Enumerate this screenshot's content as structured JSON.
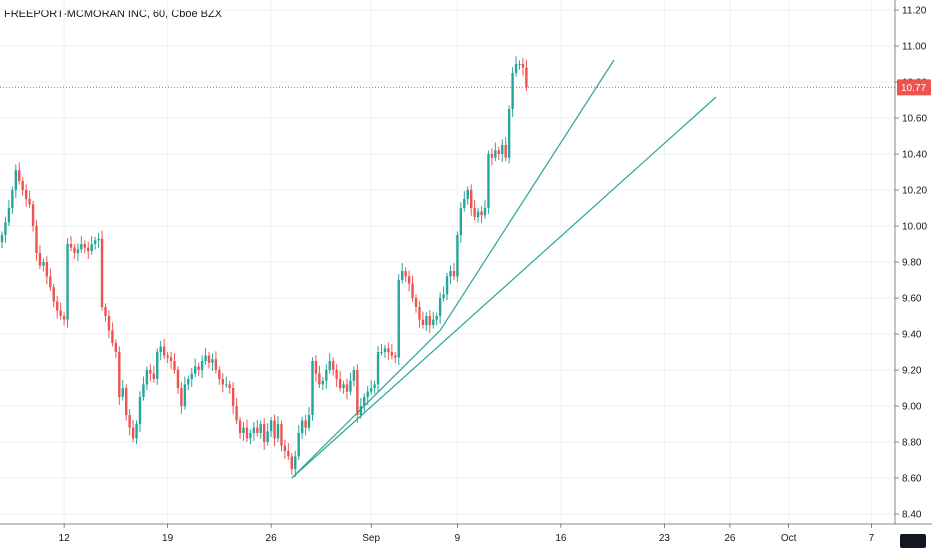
{
  "title": "FREEPORT-MCMORAN INC, 60, Cboe BZX",
  "colors": {
    "up": "#26a69a",
    "down": "#ef5350",
    "trendline": "#26a69a",
    "grid": "#eef0f3",
    "price_line": "#ef5350",
    "price_badge": "#ef5350",
    "axis_text": "#131722"
  },
  "chart_data": {
    "type": "candlestick",
    "title": "FREEPORT-MCMORAN INC, 60, Cboe BZX",
    "ylim": [
      8.35,
      11.3
    ],
    "y_ticks": [
      "8.40",
      "8.60",
      "8.80",
      "9.00",
      "9.20",
      "9.40",
      "9.60",
      "9.80",
      "10.00",
      "10.20",
      "10.40",
      "10.60",
      "10.80",
      "11.00",
      "11.20"
    ],
    "x_ticks": [
      {
        "label": "12",
        "index": 18
      },
      {
        "label": "19",
        "index": 48
      },
      {
        "label": "26",
        "index": 78
      },
      {
        "label": "Sep",
        "index": 107
      },
      {
        "label": "9",
        "index": 132
      },
      {
        "label": "16",
        "index": 162
      },
      {
        "label": "23",
        "index": 192
      },
      {
        "label": "26",
        "index": 211
      },
      {
        "label": "Oct",
        "index": 228
      },
      {
        "label": "7",
        "index": 252
      }
    ],
    "last_price": "10.77",
    "grid": true,
    "close": [
      9.95,
      10.02,
      10.1,
      10.2,
      10.31,
      10.25,
      10.2,
      10.15,
      10.12,
      10.0,
      9.85,
      9.78,
      9.8,
      9.72,
      9.66,
      9.58,
      9.53,
      9.5,
      9.48,
      9.9,
      9.88,
      9.85,
      9.87,
      9.9,
      9.88,
      9.86,
      9.9,
      9.92,
      9.93,
      9.55,
      9.5,
      9.42,
      9.35,
      9.3,
      9.05,
      9.1,
      8.95,
      8.88,
      8.82,
      8.9,
      9.05,
      9.12,
      9.2,
      9.18,
      9.15,
      9.3,
      9.33,
      9.28,
      9.27,
      9.25,
      9.2,
      9.1,
      9.0,
      9.12,
      9.15,
      9.18,
      9.22,
      9.2,
      9.25,
      9.28,
      9.24,
      9.26,
      9.2,
      9.15,
      9.12,
      9.12,
      9.1,
      9.0,
      8.92,
      8.85,
      8.88,
      8.82,
      8.85,
      8.88,
      8.85,
      8.9,
      8.8,
      8.86,
      8.92,
      8.82,
      8.9,
      8.78,
      8.75,
      8.72,
      8.65,
      8.72,
      8.85,
      8.92,
      8.88,
      8.95,
      9.25,
      9.18,
      9.12,
      9.14,
      9.2,
      9.25,
      9.2,
      9.15,
      9.1,
      9.12,
      9.08,
      9.14,
      9.2,
      8.95,
      9.0,
      9.05,
      9.08,
      9.1,
      9.12,
      9.3,
      9.3,
      9.32,
      9.3,
      9.28,
      9.27,
      9.7,
      9.75,
      9.72,
      9.68,
      9.6,
      9.55,
      9.48,
      9.45,
      9.5,
      9.45,
      9.48,
      9.5,
      9.6,
      9.62,
      9.72,
      9.75,
      9.72,
      9.95,
      10.1,
      10.15,
      10.2,
      10.1,
      10.05,
      10.08,
      10.06,
      10.1,
      10.4,
      10.38,
      10.42,
      10.4,
      10.45,
      10.38,
      10.65,
      10.85,
      10.9,
      10.9,
      10.88,
      10.77
    ]
  }
}
